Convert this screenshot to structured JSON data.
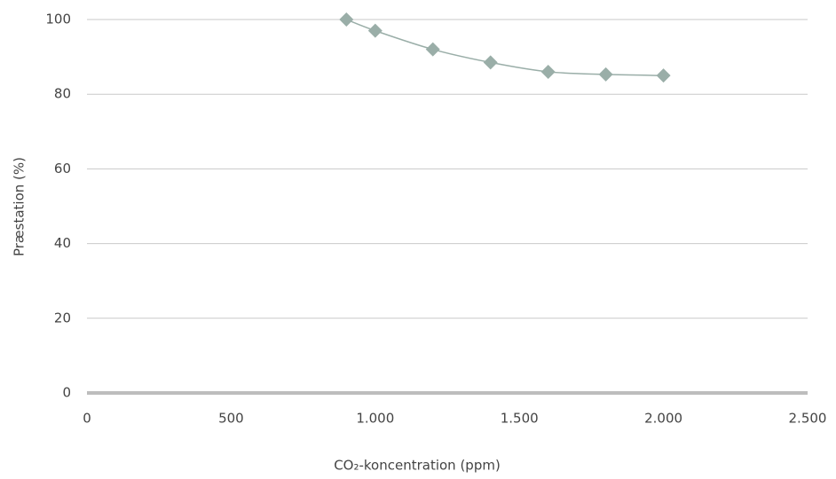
{
  "chart_data": {
    "type": "scatter-line",
    "x_label": "CO₂-koncentration (ppm)",
    "y_label": "Præstation (%)",
    "x": [
      900,
      1000,
      1200,
      1400,
      1600,
      1800,
      2000
    ],
    "series": [
      {
        "color": "#9aaea8",
        "values": [
          100,
          97,
          92,
          88.5,
          86,
          85.3,
          85
        ]
      }
    ],
    "xlim": [
      0,
      2500
    ],
    "xticks": [
      0,
      500,
      {
        "value": 1000,
        "label": "1.000"
      },
      {
        "value": 1500,
        "label": "1.500"
      },
      {
        "value": 2000,
        "label": "2.000"
      },
      {
        "value": 2500,
        "label": "2.500"
      }
    ],
    "ylim": [
      0,
      100
    ],
    "yticks": [
      0,
      20,
      40,
      60,
      80,
      100
    ],
    "grid": true
  }
}
